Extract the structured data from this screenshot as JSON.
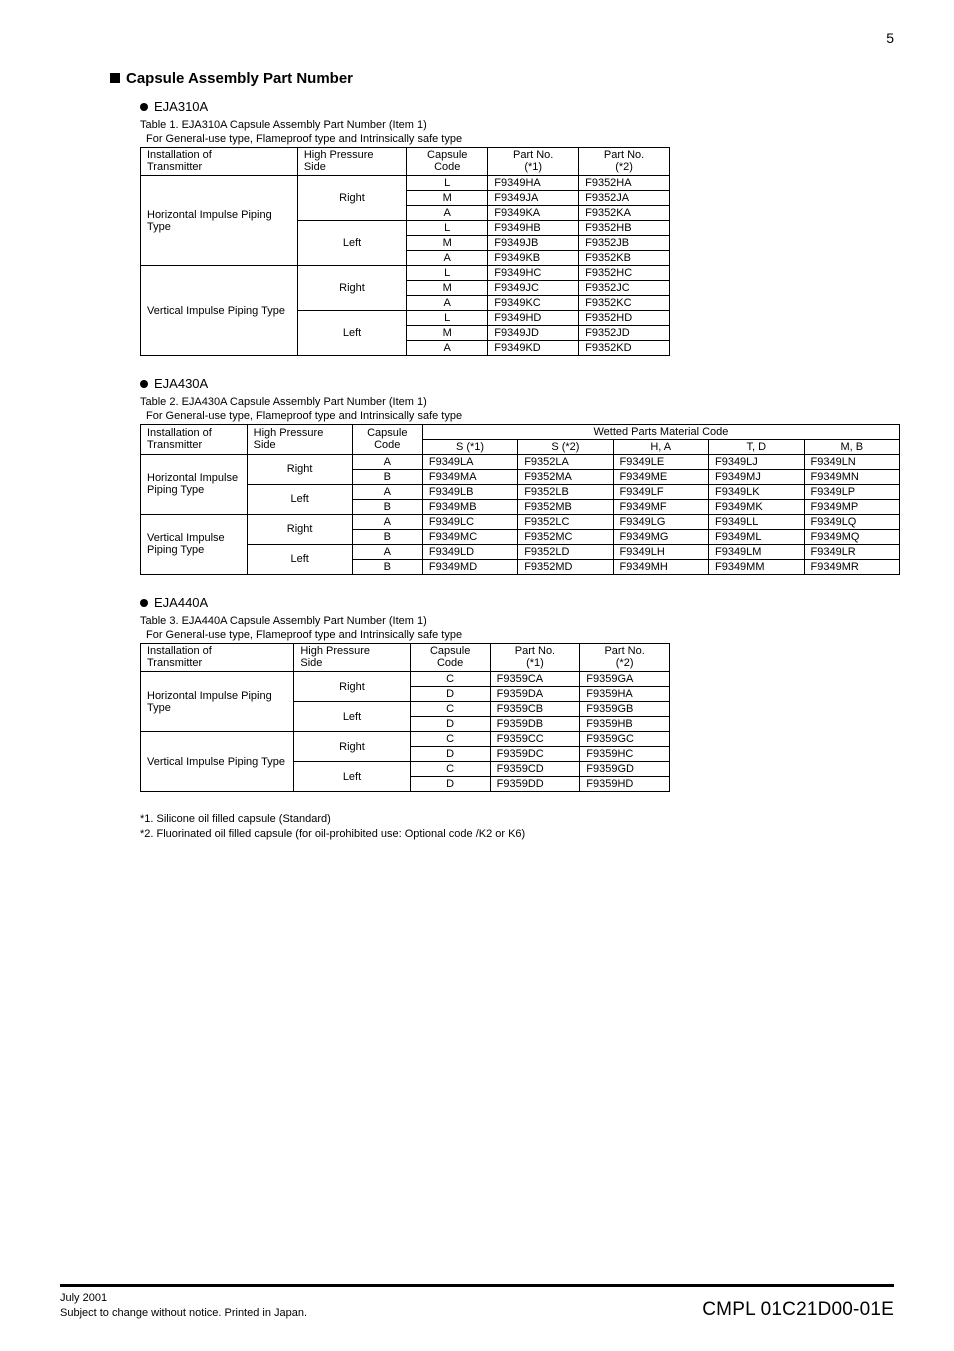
{
  "page_number": "5",
  "section_title": "Capsule Assembly Part Number",
  "footnotes": {
    "f1": "*1.  Silicone oil filled capsule (Standard)",
    "f2": "*2.  Fluorinated oil filled capsule (for oil-prohibited use: Optional code /K2 or K6)"
  },
  "footer": {
    "date": "July 2001",
    "notice": "Subject to change without notice.  Printed in Japan.",
    "doc_code": "CMPL 01C21D00-01E"
  },
  "table1": {
    "model": "EJA310A",
    "caption": "Table 1.  EJA310A Capsule Assembly Part Number (Item 1)",
    "sub": "For General-use type, Flameproof type and Intrinsically safe type",
    "headers": {
      "h1a": "Installation of",
      "h1b": "Transmitter",
      "h2a": "High Pressure",
      "h2b": "Side",
      "h3a": "Capsule",
      "h3b": "Code",
      "h4a": "Part No.",
      "h4b": "(*1)",
      "h5a": "Part No.",
      "h5b": "(*2)"
    },
    "groups": [
      {
        "install": "Horizontal Impulse Piping Type",
        "sides": [
          {
            "side": "Right",
            "rows": [
              {
                "code": "L",
                "p1": "F9349HA",
                "p2": "F9352HA"
              },
              {
                "code": "M",
                "p1": "F9349JA",
                "p2": "F9352JA"
              },
              {
                "code": "A",
                "p1": "F9349KA",
                "p2": "F9352KA"
              }
            ]
          },
          {
            "side": "Left",
            "rows": [
              {
                "code": "L",
                "p1": "F9349HB",
                "p2": "F9352HB"
              },
              {
                "code": "M",
                "p1": "F9349JB",
                "p2": "F9352JB"
              },
              {
                "code": "A",
                "p1": "F9349KB",
                "p2": "F9352KB"
              }
            ]
          }
        ]
      },
      {
        "install": "Vertical Impulse Piping Type",
        "sides": [
          {
            "side": "Right",
            "rows": [
              {
                "code": "L",
                "p1": "F9349HC",
                "p2": "F9352HC"
              },
              {
                "code": "M",
                "p1": "F9349JC",
                "p2": "F9352JC"
              },
              {
                "code": "A",
                "p1": "F9349KC",
                "p2": "F9352KC"
              }
            ]
          },
          {
            "side": "Left",
            "rows": [
              {
                "code": "L",
                "p1": "F9349HD",
                "p2": "F9352HD"
              },
              {
                "code": "M",
                "p1": "F9349JD",
                "p2": "F9352JD"
              },
              {
                "code": "A",
                "p1": "F9349KD",
                "p2": "F9352KD"
              }
            ]
          }
        ]
      }
    ]
  },
  "table2": {
    "model": "EJA430A",
    "caption": "Table 2.  EJA430A Capsule Assembly Part Number (Item 1)",
    "sub": "For General-use type, Flameproof type and Intrinsically safe type",
    "headers": {
      "h1a": "Installation of",
      "h1b": "Transmitter",
      "h2a": "High Pressure",
      "h2b": "Side",
      "h3a": "Capsule",
      "h3b": "Code",
      "wet": "Wetted Parts Material Code",
      "w1": "S (*1)",
      "w2": "S (*2)",
      "w3": "H, A",
      "w4": "T, D",
      "w5": "M, B"
    },
    "groups": [
      {
        "install": "Horizontal Impulse Piping Type",
        "sides": [
          {
            "side": "Right",
            "rows": [
              {
                "code": "A",
                "c": [
                  "F9349LA",
                  "F9352LA",
                  "F9349LE",
                  "F9349LJ",
                  "F9349LN"
                ]
              },
              {
                "code": "B",
                "c": [
                  "F9349MA",
                  "F9352MA",
                  "F9349ME",
                  "F9349MJ",
                  "F9349MN"
                ]
              }
            ]
          },
          {
            "side": "Left",
            "rows": [
              {
                "code": "A",
                "c": [
                  "F9349LB",
                  "F9352LB",
                  "F9349LF",
                  "F9349LK",
                  "F9349LP"
                ]
              },
              {
                "code": "B",
                "c": [
                  "F9349MB",
                  "F9352MB",
                  "F9349MF",
                  "F9349MK",
                  "F9349MP"
                ]
              }
            ]
          }
        ]
      },
      {
        "install": "Vertical Impulse Piping Type",
        "sides": [
          {
            "side": "Right",
            "rows": [
              {
                "code": "A",
                "c": [
                  "F9349LC",
                  "F9352LC",
                  "F9349LG",
                  "F9349LL",
                  "F9349LQ"
                ]
              },
              {
                "code": "B",
                "c": [
                  "F9349MC",
                  "F9352MC",
                  "F9349MG",
                  "F9349ML",
                  "F9349MQ"
                ]
              }
            ]
          },
          {
            "side": "Left",
            "rows": [
              {
                "code": "A",
                "c": [
                  "F9349LD",
                  "F9352LD",
                  "F9349LH",
                  "F9349LM",
                  "F9349LR"
                ]
              },
              {
                "code": "B",
                "c": [
                  "F9349MD",
                  "F9352MD",
                  "F9349MH",
                  "F9349MM",
                  "F9349MR"
                ]
              }
            ]
          }
        ]
      }
    ]
  },
  "table3": {
    "model": "EJA440A",
    "caption": "Table 3.  EJA440A Capsule Assembly Part Number (Item 1)",
    "sub": "For General-use type, Flameproof type and Intrinsically safe type",
    "headers": {
      "h1a": "Installation of",
      "h1b": "Transmitter",
      "h2a": "High  Pressure",
      "h2b": "Side",
      "h3a": "Capsule",
      "h3b": "Code",
      "h4a": "Part No.",
      "h4b": "(*1)",
      "h5a": "Part No.",
      "h5b": "(*2)"
    },
    "groups": [
      {
        "install": "Horizontal Impulse Piping Type",
        "sides": [
          {
            "side": "Right",
            "rows": [
              {
                "code": "C",
                "p1": "F9359CA",
                "p2": "F9359GA"
              },
              {
                "code": "D",
                "p1": "F9359DA",
                "p2": "F9359HA"
              }
            ]
          },
          {
            "side": "Left",
            "rows": [
              {
                "code": "C",
                "p1": "F9359CB",
                "p2": "F9359GB"
              },
              {
                "code": "D",
                "p1": "F9359DB",
                "p2": "F9359HB"
              }
            ]
          }
        ]
      },
      {
        "install": "Vertical Impulse Piping Type",
        "sides": [
          {
            "side": "Right",
            "rows": [
              {
                "code": "C",
                "p1": "F9359CC",
                "p2": "F9359GC"
              },
              {
                "code": "D",
                "p1": "F9359DC",
                "p2": "F9359HC"
              }
            ]
          },
          {
            "side": "Left",
            "rows": [
              {
                "code": "C",
                "p1": "F9359CD",
                "p2": "F9359GD"
              },
              {
                "code": "D",
                "p1": "F9359DD",
                "p2": "F9359HD"
              }
            ]
          }
        ]
      }
    ]
  }
}
